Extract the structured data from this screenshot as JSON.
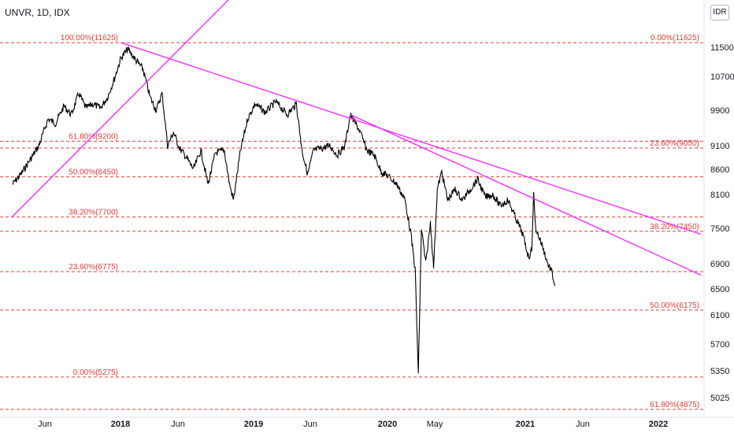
{
  "symbol_label": "UNVR, 1D, IDX",
  "currency_button": "IDR",
  "colors": {
    "fib": "#e0403a",
    "trendline": "#ff2bff",
    "price": "#000000",
    "axis_text": "#131722"
  },
  "chart_data": {
    "type": "line",
    "title": "",
    "x_ticks": [
      "Jun",
      "2018",
      "Jun",
      "2019",
      "Jun",
      "2020",
      "May",
      "2021",
      "Jun",
      "2022"
    ],
    "y_ticks": [
      11500,
      10700,
      9900,
      9100,
      8600,
      8100,
      7500,
      6900,
      6500,
      6100,
      5700,
      5350,
      5025
    ],
    "ylim": [
      4875,
      11950
    ],
    "price_series": {
      "name": "",
      "points": [
        [
          "2017-03-01",
          8300
        ],
        [
          "2017-03-25",
          8500
        ],
        [
          "2017-04-20",
          8800
        ],
        [
          "2017-05-15",
          9100
        ],
        [
          "2017-06-10",
          9700
        ],
        [
          "2017-07-01",
          9600
        ],
        [
          "2017-07-25",
          10000
        ],
        [
          "2017-08-15",
          9800
        ],
        [
          "2017-09-05",
          10300
        ],
        [
          "2017-09-25",
          9950
        ],
        [
          "2017-10-15",
          10050
        ],
        [
          "2017-11-05",
          9950
        ],
        [
          "2017-11-25",
          10200
        ],
        [
          "2017-12-15",
          10650
        ],
        [
          "2018-01-02",
          11200
        ],
        [
          "2018-01-20",
          11450
        ],
        [
          "2018-02-10",
          11150
        ],
        [
          "2018-03-01",
          10900
        ],
        [
          "2018-03-20",
          10200
        ],
        [
          "2018-04-05",
          9900
        ],
        [
          "2018-04-20",
          10300
        ],
        [
          "2018-05-05",
          9100
        ],
        [
          "2018-05-20",
          9400
        ],
        [
          "2018-06-05",
          9050
        ],
        [
          "2018-06-25",
          8850
        ],
        [
          "2018-07-15",
          8600
        ],
        [
          "2018-08-05",
          9000
        ],
        [
          "2018-08-25",
          8300
        ],
        [
          "2018-09-15",
          8950
        ],
        [
          "2018-10-10",
          9000
        ],
        [
          "2018-10-25",
          8300
        ],
        [
          "2018-11-05",
          8000
        ],
        [
          "2018-11-25",
          9000
        ],
        [
          "2018-12-15",
          9700
        ],
        [
          "2019-01-05",
          10050
        ],
        [
          "2019-02-01",
          9850
        ],
        [
          "2019-03-01",
          10100
        ],
        [
          "2019-04-01",
          9800
        ],
        [
          "2019-04-25",
          10050
        ],
        [
          "2019-05-10",
          9000
        ],
        [
          "2019-05-25",
          8500
        ],
        [
          "2019-06-10",
          9000
        ],
        [
          "2019-07-05",
          9050
        ],
        [
          "2019-07-25",
          9100
        ],
        [
          "2019-08-15",
          8900
        ],
        [
          "2019-09-05",
          9100
        ],
        [
          "2019-09-20",
          9800
        ],
        [
          "2019-10-15",
          9450
        ],
        [
          "2019-11-05",
          9000
        ],
        [
          "2019-11-25",
          8900
        ],
        [
          "2019-12-15",
          8550
        ],
        [
          "2020-01-05",
          8450
        ],
        [
          "2020-01-25",
          8300
        ],
        [
          "2020-02-15",
          8000
        ],
        [
          "2020-03-01",
          7400
        ],
        [
          "2020-03-12",
          6800
        ],
        [
          "2020-03-20",
          5300
        ],
        [
          "2020-03-28",
          7500
        ],
        [
          "2020-04-08",
          6900
        ],
        [
          "2020-04-20",
          7600
        ],
        [
          "2020-04-28",
          6850
        ],
        [
          "2020-05-08",
          8200
        ],
        [
          "2020-05-20",
          8550
        ],
        [
          "2020-06-05",
          8000
        ],
        [
          "2020-06-25",
          8200
        ],
        [
          "2020-07-15",
          8000
        ],
        [
          "2020-08-05",
          8200
        ],
        [
          "2020-08-25",
          8400
        ],
        [
          "2020-09-15",
          8050
        ],
        [
          "2020-10-05",
          8100
        ],
        [
          "2020-10-25",
          7900
        ],
        [
          "2020-11-15",
          8000
        ],
        [
          "2020-12-05",
          7700
        ],
        [
          "2020-12-25",
          7400
        ],
        [
          "2021-01-10",
          7000
        ],
        [
          "2021-01-18",
          7150
        ],
        [
          "2021-01-23",
          8100
        ],
        [
          "2021-01-28",
          7500
        ],
        [
          "2021-02-15",
          7200
        ],
        [
          "2021-03-01",
          6900
        ],
        [
          "2021-03-10",
          6800
        ],
        [
          "2021-03-20",
          6550
        ]
      ]
    },
    "trendlines": [
      {
        "from": [
          "2017-03-01",
          7710
        ],
        "to": [
          "2018-11-27",
          13155
        ]
      },
      {
        "from": [
          "2018-01-02",
          11625
        ],
        "to": [
          "2022-05-01",
          7400
        ]
      },
      {
        "from": [
          "2019-09-20",
          9800
        ],
        "to": [
          "2022-05-01",
          6720
        ]
      }
    ],
    "fib_levels": [
      {
        "label": "100.00%(11625)",
        "value": 11625,
        "side": "left"
      },
      {
        "label": "0.00%(11625)",
        "value": 11625,
        "side": "right"
      },
      {
        "label": "61.80%(9200)",
        "value": 9200,
        "side": "left"
      },
      {
        "label": "23.60%(9050)",
        "value": 9050,
        "side": "right"
      },
      {
        "label": "50.00%(8450)",
        "value": 8450,
        "side": "left"
      },
      {
        "label": "38.20%(7700)",
        "value": 7700,
        "side": "left"
      },
      {
        "label": "38.20%(7450)",
        "value": 7450,
        "side": "right"
      },
      {
        "label": "23.60%(6775)",
        "value": 6775,
        "side": "left"
      },
      {
        "label": "50.00%(6175)",
        "value": 6175,
        "side": "right"
      },
      {
        "label": "0.00%(5275)",
        "value": 5275,
        "side": "left"
      },
      {
        "label": "61.80%(4875)",
        "value": 4875,
        "side": "right"
      }
    ]
  }
}
